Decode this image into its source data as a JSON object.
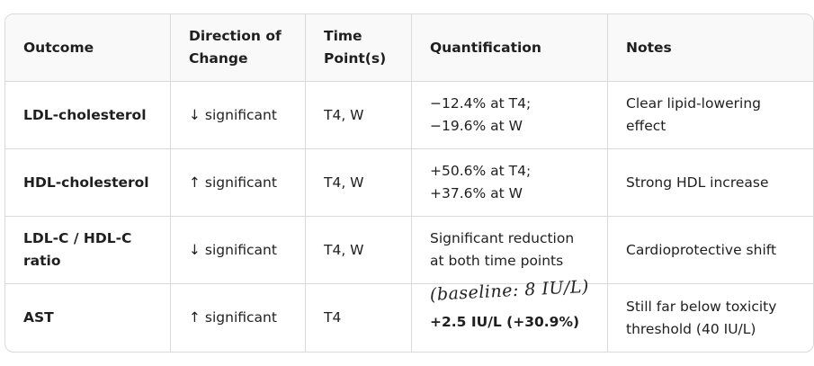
{
  "table": {
    "header": [
      "Outcome",
      "Direction of Change",
      "Time Point(s)",
      "Quantification",
      "Notes"
    ],
    "rows": [
      [
        "LDL-cholesterol",
        "↓ significant",
        "T4, W",
        "−12.4% at T4; −19.6% at W",
        "Clear lipid-lowering effect"
      ],
      [
        "HDL-cholesterol",
        "↑ significant",
        "T4, W",
        "+50.6% at T4; +37.6% at W",
        "Strong HDL increase"
      ],
      [
        "LDL-C / HDL-C ratio",
        "↓ significant",
        "T4, W",
        "Significant reduction at both time points",
        "Cardioprotective shift"
      ],
      [
        "AST",
        "↑ significant",
        "T4",
        "+2.5 IU/L (+30.9%)",
        "Still far below toxicity threshold (40 IU/L)"
      ]
    ],
    "handwritten_note": "(baseline: 8 IU/L)"
  }
}
